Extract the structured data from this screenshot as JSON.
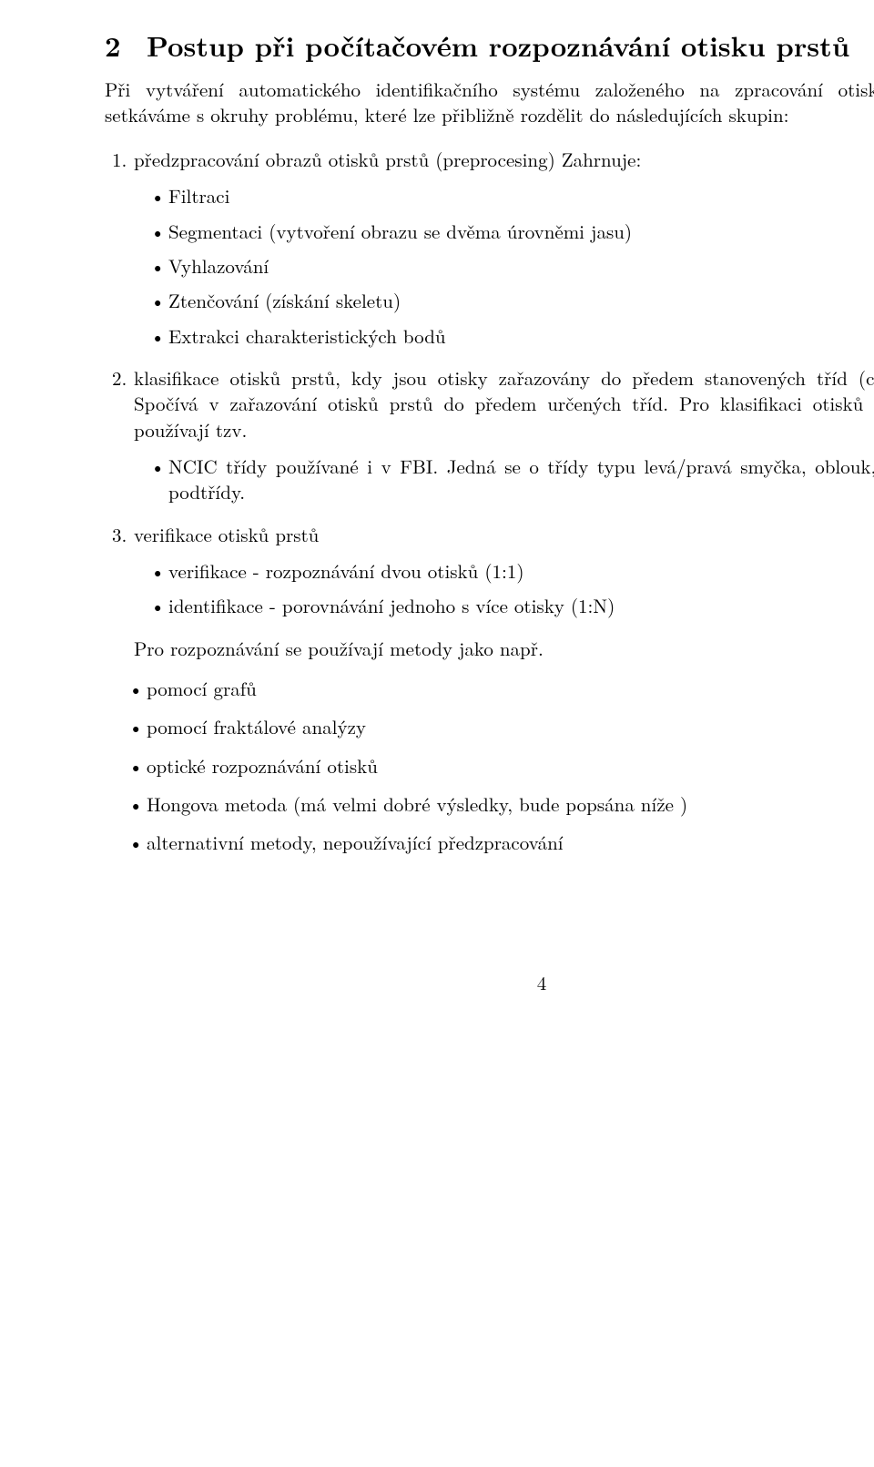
{
  "section": {
    "number": "2",
    "title": "Postup při počítačovém rozpoznávání otisku prstů"
  },
  "intro": "Při vytváření automatického identifikačního systému založeného na zpracování otisků prstů se setkáváme s okruhy problému, které lze přibližně rozdělit do následujících skupin:",
  "item1": {
    "num": "1.",
    "text": "předzpracování obrazů otisků prstů (preprocesing) Zahrnuje:",
    "bullets": {
      "0": "Filtraci",
      "1": "Segmentaci (vytvoření obrazu se dvěma úrovněmi jasu)",
      "2": "Vyhlazování",
      "3": "Ztenčování (získání skeletu)",
      "4": "Extrakci charakteristických bodů"
    }
  },
  "item2": {
    "num": "2.",
    "text": "klasifikace otisků prstů, kdy jsou otisky zařazovány do předem stanovených tříd (classification) Spočívá v zařazování otisků prstů do předem určených tříd. Pro klasifikaci otisků se nejčastěji používají tzv.",
    "bullets": {
      "0": "NCIC třídy používané i v FBI. Jedná se o třídy typu levá/pravá smyčka, oblouk, vír a jejich podtřídy."
    }
  },
  "item3": {
    "num": "3.",
    "text": "verifikace otisků prstů",
    "bullets": {
      "0": "verifikace - rozpoznávání dvou otisků (1:1)",
      "1": "identifikace - porovnávání jednoho s více otisky (1:N)"
    }
  },
  "methodsLine": "Pro rozpoznávání se používají metody jako např.",
  "methods": {
    "0": "pomocí grafů",
    "1": "pomocí fraktálové analýzy",
    "2": "optické rozpoznávání otisků",
    "3": "Hongova metoda (má velmi dobré výsledky, bude popsána níže )",
    "4": "alternativní metody, nepoužívající předzpracování"
  },
  "pageNumber": "4"
}
